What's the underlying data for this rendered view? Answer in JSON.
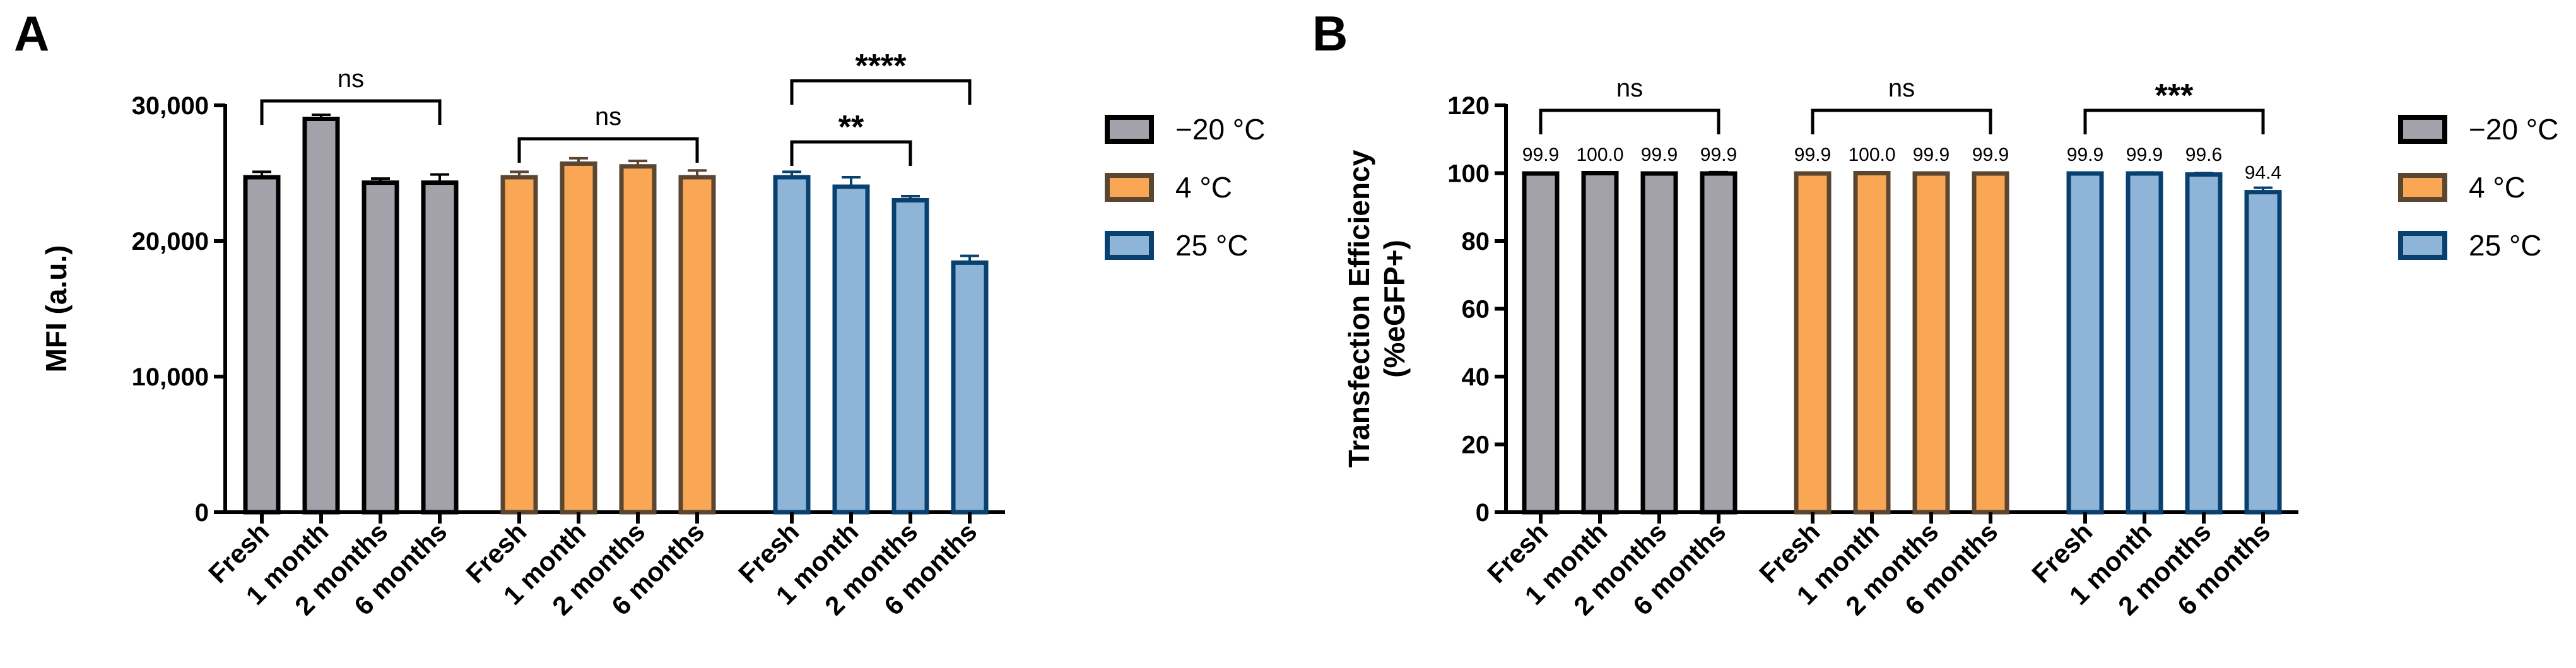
{
  "chart_data": [
    {
      "panel": "A",
      "type": "bar",
      "ylabel": "MFI (a.u.)",
      "ylim": [
        0,
        30000
      ],
      "yticks": [
        "0",
        "10,000",
        "20,000",
        "30,000"
      ],
      "categories": [
        "Fresh",
        "1 month",
        "2 months",
        "6 months"
      ],
      "series": [
        {
          "name": "−20 °C",
          "fill": "#a3a2aa",
          "stroke": "#000000",
          "values": [
            24700,
            29000,
            24300,
            24300
          ],
          "errors": [
            400,
            300,
            300,
            600
          ]
        },
        {
          "name": "4 °C",
          "fill": "#f9a655",
          "stroke": "#5b4631",
          "values": [
            24700,
            25700,
            25500,
            24700
          ],
          "errors": [
            400,
            400,
            400,
            500
          ]
        },
        {
          "name": "25 °C",
          "fill": "#8eb4d7",
          "stroke": "#084170",
          "values": [
            24700,
            24000,
            23000,
            18400
          ],
          "errors": [
            400,
            700,
            300,
            500
          ]
        }
      ],
      "significance": [
        {
          "group": 0,
          "from": 0,
          "to": 3,
          "label": "ns"
        },
        {
          "group": 1,
          "from": 0,
          "to": 3,
          "label": "ns"
        },
        {
          "group": 2,
          "from": 0,
          "to": 2,
          "label": "**"
        },
        {
          "group": 2,
          "from": 0,
          "to": 3,
          "label": "****"
        }
      ]
    },
    {
      "panel": "B",
      "type": "bar",
      "ylabel": "Transfection Efficiency",
      "ylabel2": "(%eGFP+)",
      "ylim": [
        0,
        120
      ],
      "yticks": [
        "0",
        "20",
        "40",
        "60",
        "80",
        "100",
        "120"
      ],
      "categories": [
        "Fresh",
        "1 month",
        "2 months",
        "6 months"
      ],
      "series": [
        {
          "name": "−20 °C",
          "fill": "#a3a2aa",
          "stroke": "#000000",
          "values": [
            99.9,
            100.0,
            99.9,
            99.9
          ],
          "errors": [
            0.1,
            0.1,
            0.1,
            0.4
          ],
          "labels": [
            "99.9",
            "100.0",
            "99.9",
            "99.9"
          ]
        },
        {
          "name": "4 °C",
          "fill": "#f9a655",
          "stroke": "#5b4631",
          "values": [
            99.9,
            100.0,
            99.9,
            99.9
          ],
          "errors": [
            0.1,
            0.1,
            0.1,
            0.1
          ],
          "labels": [
            "99.9",
            "100.0",
            "99.9",
            "99.9"
          ]
        },
        {
          "name": "25 °C",
          "fill": "#8eb4d7",
          "stroke": "#084170",
          "values": [
            99.9,
            99.9,
            99.6,
            94.4
          ],
          "errors": [
            0.1,
            0.3,
            0.4,
            1.3
          ],
          "labels": [
            "99.9",
            "99.9",
            "99.6",
            "94.4"
          ]
        }
      ],
      "significance": [
        {
          "group": 0,
          "from": 0,
          "to": 3,
          "label": "ns"
        },
        {
          "group": 1,
          "from": 0,
          "to": 3,
          "label": "ns"
        },
        {
          "group": 2,
          "from": 0,
          "to": 3,
          "label": "***"
        }
      ]
    }
  ]
}
